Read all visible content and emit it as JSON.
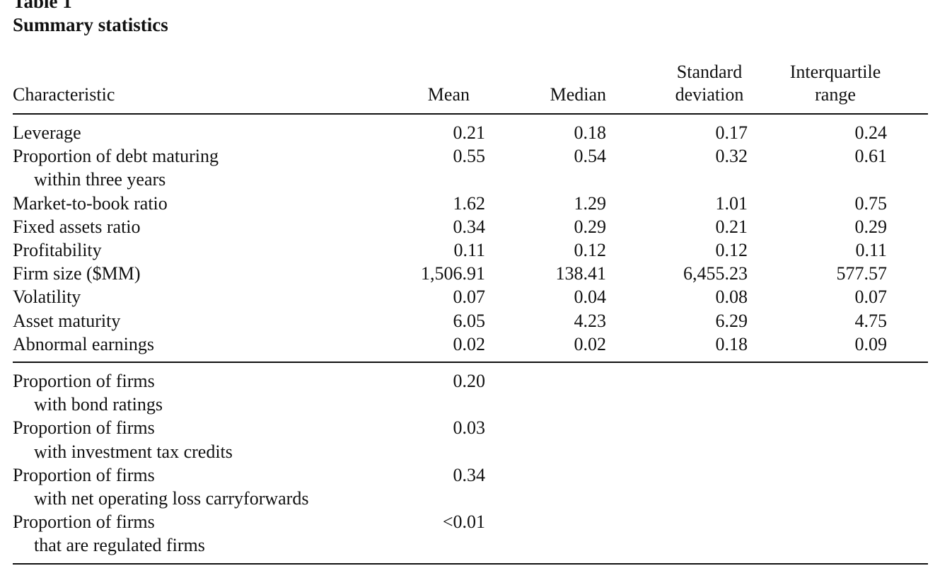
{
  "caption": {
    "label": "Table 1",
    "title": "Summary statistics"
  },
  "columns": {
    "characteristic": "Characteristic",
    "mean": "Mean",
    "median": "Median",
    "sd_line1": "Standard",
    "sd_line2": "deviation",
    "iqr_line1": "Interquartile",
    "iqr_line2": "range"
  },
  "rows": [
    {
      "label": "Leverage",
      "mean": "0.21",
      "median": "0.18",
      "sd": "0.17",
      "iqr": "0.24"
    },
    {
      "label": "Proportion of debt maturing",
      "label2": "within three years",
      "mean": "0.55",
      "median": "0.54",
      "sd": "0.32",
      "iqr": "0.61"
    },
    {
      "label": "Market-to-book ratio",
      "mean": "1.62",
      "median": "1.29",
      "sd": "1.01",
      "iqr": "0.75"
    },
    {
      "label": "Fixed assets ratio",
      "mean": "0.34",
      "median": "0.29",
      "sd": "0.21",
      "iqr": "0.29"
    },
    {
      "label": "Profitability",
      "mean": "0.11",
      "median": "0.12",
      "sd": "0.12",
      "iqr": "0.11"
    },
    {
      "label": "Firm size ($MM)",
      "mean": "1,506.91",
      "median": "138.41",
      "sd": "6,455.23",
      "iqr": "577.57"
    },
    {
      "label": "Volatility",
      "mean": "0.07",
      "median": "0.04",
      "sd": "0.08",
      "iqr": "0.07"
    },
    {
      "label": "Asset maturity",
      "mean": "6.05",
      "median": "4.23",
      "sd": "6.29",
      "iqr": "4.75"
    },
    {
      "label": "Abnormal earnings",
      "mean": "0.02",
      "median": "0.02",
      "sd": "0.18",
      "iqr": "0.09"
    }
  ],
  "proportions": [
    {
      "label": "Proportion of firms",
      "label2": "with bond ratings",
      "mean": "0.20"
    },
    {
      "label": "Proportion of firms",
      "label2": "with investment tax credits",
      "mean": "0.03"
    },
    {
      "label": "Proportion of firms",
      "label2": "with net operating loss carryforwards",
      "mean": "0.34"
    },
    {
      "label": "Proportion of firms",
      "label2": "that are regulated firms",
      "mean": "<0.01"
    }
  ]
}
